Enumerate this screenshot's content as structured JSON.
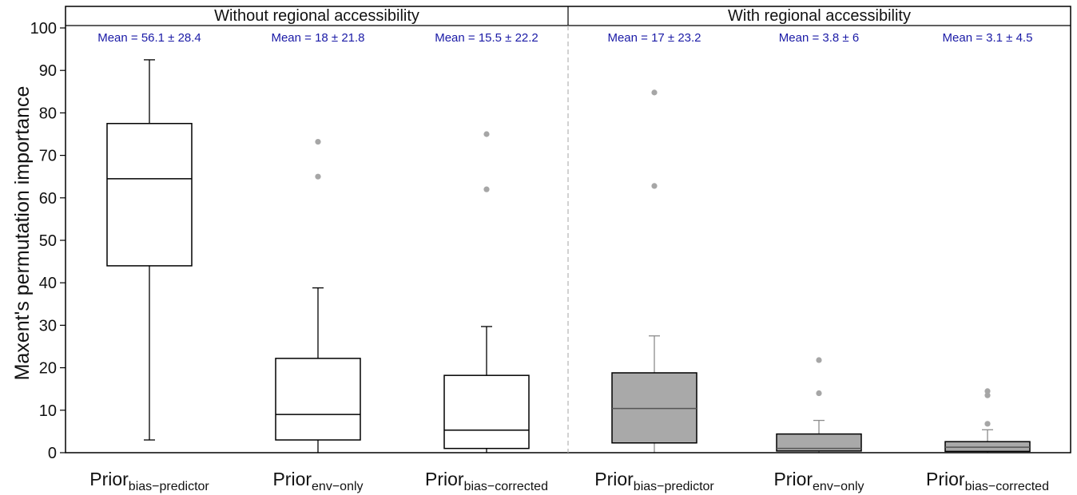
{
  "chart_data": {
    "type": "box",
    "ylabel": "Maxent's permutation importance",
    "ylim": [
      0,
      100
    ],
    "yticks": [
      "0",
      "10",
      "20",
      "30",
      "40",
      "50",
      "60",
      "70",
      "80",
      "90",
      "100"
    ],
    "grid": false,
    "panels": [
      {
        "title": "Without regional accessibility"
      },
      {
        "title": "With regional accessibility"
      }
    ],
    "boxes": [
      {
        "panel": 0,
        "label_main": "Prior",
        "label_sub": "bias−predictor",
        "mean_label": "Mean = 56.1 ± 28.4",
        "fill": "#ffffff",
        "stroke": "#000000",
        "q1": 44,
        "median": 64.5,
        "q3": 77.5,
        "whisker_low": 3,
        "whisker_high": 92.5,
        "outliers": []
      },
      {
        "panel": 0,
        "label_main": "Prior",
        "label_sub": "env−only",
        "mean_label": "Mean = 18 ± 21.8",
        "fill": "#ffffff",
        "stroke": "#000000",
        "q1": 3,
        "median": 9,
        "q3": 22.2,
        "whisker_low": 0,
        "whisker_high": 38.8,
        "outliers": [
          73.2,
          65
        ]
      },
      {
        "panel": 0,
        "label_main": "Prior",
        "label_sub": "bias−corrected",
        "mean_label": "Mean = 15.5 ± 22.2",
        "fill": "#ffffff",
        "stroke": "#000000",
        "q1": 1,
        "median": 5.3,
        "q3": 18.2,
        "whisker_low": 0,
        "whisker_high": 29.7,
        "outliers": [
          75,
          62
        ]
      },
      {
        "panel": 1,
        "label_main": "Prior",
        "label_sub": "bias−predictor",
        "mean_label": "Mean = 17 ± 23.2",
        "fill": "#a9a9a9",
        "stroke": "#000000",
        "q1": 2.3,
        "median": 10.4,
        "q3": 18.8,
        "whisker_low": 0,
        "whisker_high": 27.5,
        "outliers": [
          84.8,
          62.8
        ]
      },
      {
        "panel": 1,
        "label_main": "Prior",
        "label_sub": "env−only",
        "mean_label": "Mean = 3.8 ± 6",
        "fill": "#a9a9a9",
        "stroke": "#000000",
        "q1": 0.4,
        "median": 1,
        "q3": 4.4,
        "whisker_low": 0,
        "whisker_high": 7.6,
        "outliers": [
          21.8,
          14
        ]
      },
      {
        "panel": 1,
        "label_main": "Prior",
        "label_sub": "bias−corrected",
        "mean_label": "Mean = 3.1 ± 4.5",
        "fill": "#a9a9a9",
        "stroke": "#000000",
        "q1": 0.3,
        "median": 1.3,
        "q3": 2.6,
        "whisker_low": 0,
        "whisker_high": 5.4,
        "outliers": [
          14.5,
          13.5,
          6.8
        ]
      }
    ],
    "colors": {
      "mean_text": "#1a1aa6",
      "outlier": "#a6a6a6",
      "divider": "#b4b4b4",
      "whisker_gray": "#8c8c8c"
    }
  }
}
